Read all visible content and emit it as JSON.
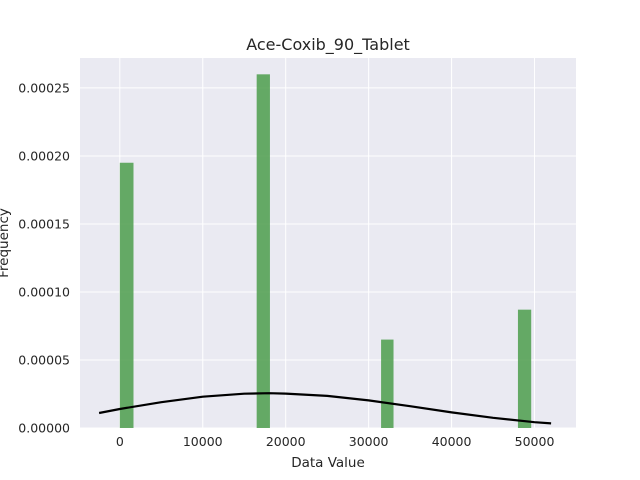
{
  "chart_data": {
    "type": "bar",
    "title": "Ace-Coxib_90_Tablet",
    "xlabel": "Data Value",
    "ylabel": "Frequency",
    "xlim": [
      -4800,
      55000
    ],
    "ylim": [
      0,
      0.000272
    ],
    "xticks": [
      0,
      10000,
      20000,
      30000,
      40000,
      50000
    ],
    "yticks": [
      0,
      5e-05,
      0.0001,
      0.00015,
      0.0002,
      0.00025
    ],
    "xtick_labels": [
      "0",
      "10000",
      "20000",
      "30000",
      "40000",
      "50000"
    ],
    "ytick_labels": [
      "0.00000",
      "0.00005",
      "0.00010",
      "0.00015",
      "0.00020",
      "0.00025"
    ],
    "grid": true,
    "bar_color": "#4c9e4c",
    "curve_color": "#000000",
    "bars": [
      {
        "x0": 0,
        "x1": 1650,
        "value": 0.000195
      },
      {
        "x0": 16500,
        "x1": 18100,
        "value": 0.00026
      },
      {
        "x0": 31500,
        "x1": 33000,
        "value": 6.5e-05
      },
      {
        "x0": 48000,
        "x1": 49600,
        "value": 8.7e-05
      }
    ],
    "series": [
      {
        "type": "line",
        "x": [
          -2500,
          0,
          5000,
          10000,
          15000,
          18000,
          20000,
          25000,
          30000,
          35000,
          40000,
          45000,
          50000,
          52000
        ],
        "values": [
          1.1e-05,
          1.4e-05,
          1.9e-05,
          2.3e-05,
          2.52e-05,
          2.56e-05,
          2.53e-05,
          2.36e-05,
          2.03e-05,
          1.6e-05,
          1.15e-05,
          7.5e-06,
          4.3e-06,
          3.4e-06
        ]
      }
    ]
  }
}
